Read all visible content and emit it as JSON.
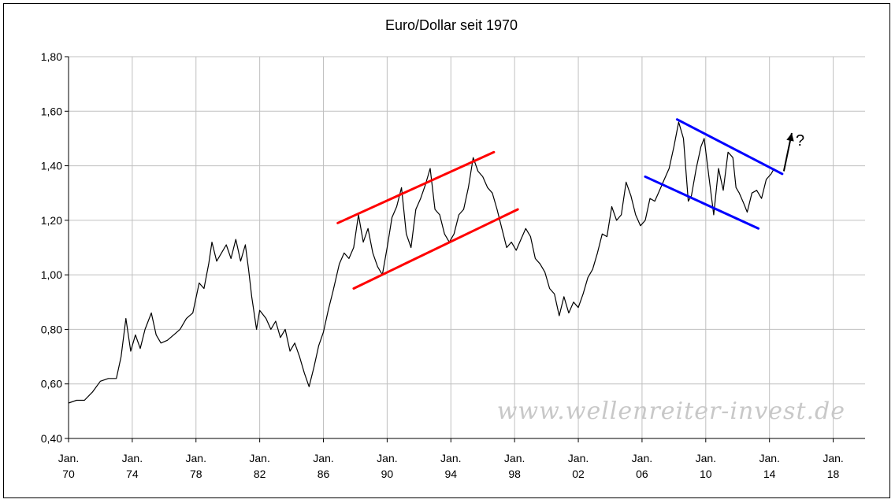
{
  "chart_data": {
    "type": "line",
    "title": "Euro/Dollar seit 1970",
    "xlabel": "",
    "ylabel": "",
    "xlim": [
      1970,
      2020
    ],
    "ylim": [
      0.4,
      1.8
    ],
    "yticks": [
      "0,40",
      "0,60",
      "0,80",
      "1,00",
      "1,20",
      "1,40",
      "1,60",
      "1,80"
    ],
    "ytick_values": [
      0.4,
      0.6,
      0.8,
      1.0,
      1.2,
      1.4,
      1.6,
      1.8
    ],
    "xticks": [
      {
        "year": 1970,
        "line1": "Jan.",
        "line2": "70"
      },
      {
        "year": 1974,
        "line1": "Jan.",
        "line2": "74"
      },
      {
        "year": 1978,
        "line1": "Jan.",
        "line2": "78"
      },
      {
        "year": 1982,
        "line1": "Jan.",
        "line2": "82"
      },
      {
        "year": 1986,
        "line1": "Jan.",
        "line2": "86"
      },
      {
        "year": 1990,
        "line1": "Jan.",
        "line2": "90"
      },
      {
        "year": 1994,
        "line1": "Jan.",
        "line2": "94"
      },
      {
        "year": 1998,
        "line1": "Jan.",
        "line2": "98"
      },
      {
        "year": 2002,
        "line1": "Jan.",
        "line2": "02"
      },
      {
        "year": 2006,
        "line1": "Jan.",
        "line2": "06"
      },
      {
        "year": 2010,
        "line1": "Jan.",
        "line2": "10"
      },
      {
        "year": 2014,
        "line1": "Jan.",
        "line2": "14"
      },
      {
        "year": 2018,
        "line1": "Jan.",
        "line2": "18"
      }
    ],
    "grid": true,
    "series": [
      {
        "color": "#000000",
        "points": [
          [
            1970.0,
            0.53
          ],
          [
            1970.5,
            0.54
          ],
          [
            1971.0,
            0.54
          ],
          [
            1971.5,
            0.57
          ],
          [
            1972.0,
            0.61
          ],
          [
            1972.5,
            0.62
          ],
          [
            1973.0,
            0.62
          ],
          [
            1973.3,
            0.7
          ],
          [
            1973.6,
            0.84
          ],
          [
            1973.9,
            0.72
          ],
          [
            1974.2,
            0.78
          ],
          [
            1974.5,
            0.73
          ],
          [
            1974.8,
            0.8
          ],
          [
            1975.2,
            0.86
          ],
          [
            1975.5,
            0.78
          ],
          [
            1975.8,
            0.75
          ],
          [
            1976.2,
            0.76
          ],
          [
            1976.6,
            0.78
          ],
          [
            1977.0,
            0.8
          ],
          [
            1977.4,
            0.84
          ],
          [
            1977.8,
            0.86
          ],
          [
            1978.2,
            0.97
          ],
          [
            1978.5,
            0.95
          ],
          [
            1978.8,
            1.04
          ],
          [
            1979.0,
            1.12
          ],
          [
            1979.3,
            1.05
          ],
          [
            1979.6,
            1.08
          ],
          [
            1979.9,
            1.11
          ],
          [
            1980.2,
            1.06
          ],
          [
            1980.5,
            1.13
          ],
          [
            1980.8,
            1.05
          ],
          [
            1981.1,
            1.11
          ],
          [
            1981.3,
            1.02
          ],
          [
            1981.5,
            0.92
          ],
          [
            1981.8,
            0.8
          ],
          [
            1982.0,
            0.87
          ],
          [
            1982.4,
            0.84
          ],
          [
            1982.7,
            0.8
          ],
          [
            1983.0,
            0.83
          ],
          [
            1983.3,
            0.77
          ],
          [
            1983.6,
            0.8
          ],
          [
            1983.9,
            0.72
          ],
          [
            1984.2,
            0.75
          ],
          [
            1984.5,
            0.7
          ],
          [
            1984.8,
            0.64
          ],
          [
            1985.1,
            0.59
          ],
          [
            1985.4,
            0.66
          ],
          [
            1985.7,
            0.74
          ],
          [
            1986.0,
            0.79
          ],
          [
            1986.3,
            0.87
          ],
          [
            1986.6,
            0.94
          ],
          [
            1987.0,
            1.04
          ],
          [
            1987.3,
            1.08
          ],
          [
            1987.6,
            1.06
          ],
          [
            1987.9,
            1.1
          ],
          [
            1988.2,
            1.22
          ],
          [
            1988.5,
            1.12
          ],
          [
            1988.8,
            1.17
          ],
          [
            1989.1,
            1.08
          ],
          [
            1989.4,
            1.03
          ],
          [
            1989.7,
            1.0
          ],
          [
            1990.0,
            1.1
          ],
          [
            1990.3,
            1.21
          ],
          [
            1990.6,
            1.25
          ],
          [
            1990.9,
            1.32
          ],
          [
            1991.2,
            1.15
          ],
          [
            1991.5,
            1.1
          ],
          [
            1991.8,
            1.24
          ],
          [
            1992.1,
            1.28
          ],
          [
            1992.4,
            1.33
          ],
          [
            1992.7,
            1.39
          ],
          [
            1993.0,
            1.24
          ],
          [
            1993.3,
            1.22
          ],
          [
            1993.6,
            1.15
          ],
          [
            1993.9,
            1.12
          ],
          [
            1994.2,
            1.15
          ],
          [
            1994.5,
            1.22
          ],
          [
            1994.8,
            1.24
          ],
          [
            1995.1,
            1.32
          ],
          [
            1995.4,
            1.43
          ],
          [
            1995.7,
            1.38
          ],
          [
            1996.0,
            1.36
          ],
          [
            1996.3,
            1.32
          ],
          [
            1996.6,
            1.3
          ],
          [
            1996.9,
            1.24
          ],
          [
            1997.2,
            1.17
          ],
          [
            1997.5,
            1.1
          ],
          [
            1997.8,
            1.12
          ],
          [
            1998.1,
            1.09
          ],
          [
            1998.4,
            1.13
          ],
          [
            1998.7,
            1.17
          ],
          [
            1999.0,
            1.14
          ],
          [
            1999.3,
            1.06
          ],
          [
            1999.6,
            1.04
          ],
          [
            1999.9,
            1.01
          ],
          [
            2000.2,
            0.95
          ],
          [
            2000.5,
            0.93
          ],
          [
            2000.8,
            0.85
          ],
          [
            2001.1,
            0.92
          ],
          [
            2001.4,
            0.86
          ],
          [
            2001.7,
            0.9
          ],
          [
            2002.0,
            0.88
          ],
          [
            2002.3,
            0.93
          ],
          [
            2002.6,
            0.99
          ],
          [
            2002.9,
            1.02
          ],
          [
            2003.2,
            1.08
          ],
          [
            2003.5,
            1.15
          ],
          [
            2003.8,
            1.14
          ],
          [
            2004.1,
            1.25
          ],
          [
            2004.4,
            1.2
          ],
          [
            2004.7,
            1.22
          ],
          [
            2005.0,
            1.34
          ],
          [
            2005.3,
            1.29
          ],
          [
            2005.6,
            1.22
          ],
          [
            2005.9,
            1.18
          ],
          [
            2006.2,
            1.2
          ],
          [
            2006.5,
            1.28
          ],
          [
            2006.8,
            1.27
          ],
          [
            2007.1,
            1.31
          ],
          [
            2007.4,
            1.35
          ],
          [
            2007.7,
            1.39
          ],
          [
            2008.0,
            1.47
          ],
          [
            2008.3,
            1.56
          ],
          [
            2008.6,
            1.5
          ],
          [
            2008.9,
            1.27
          ],
          [
            2009.1,
            1.29
          ],
          [
            2009.4,
            1.39
          ],
          [
            2009.7,
            1.47
          ],
          [
            2009.9,
            1.5
          ],
          [
            2010.2,
            1.36
          ],
          [
            2010.5,
            1.22
          ],
          [
            2010.8,
            1.39
          ],
          [
            2011.1,
            1.31
          ],
          [
            2011.4,
            1.45
          ],
          [
            2011.7,
            1.43
          ],
          [
            2011.9,
            1.32
          ],
          [
            2012.1,
            1.3
          ],
          [
            2012.4,
            1.26
          ],
          [
            2012.6,
            1.23
          ],
          [
            2012.9,
            1.3
          ],
          [
            2013.2,
            1.31
          ],
          [
            2013.5,
            1.28
          ],
          [
            2013.8,
            1.35
          ],
          [
            2014.1,
            1.37
          ],
          [
            2014.3,
            1.39
          ]
        ]
      }
    ],
    "trend_lines": [
      {
        "color": "#ff0000",
        "from": [
          1986.9,
          1.19
        ],
        "to": [
          1996.7,
          1.45
        ]
      },
      {
        "color": "#ff0000",
        "from": [
          1987.9,
          0.95
        ],
        "to": [
          1998.2,
          1.24
        ]
      },
      {
        "color": "#0000ff",
        "from": [
          2008.2,
          1.57
        ],
        "to": [
          2014.8,
          1.37
        ]
      },
      {
        "color": "#0000ff",
        "from": [
          2006.2,
          1.36
        ],
        "to": [
          2013.3,
          1.17
        ]
      }
    ],
    "arrow": {
      "from": [
        2014.9,
        1.38
      ],
      "to": [
        2015.4,
        1.52
      ],
      "label": "?"
    },
    "watermark": "www.wellenreiter-invest.de"
  }
}
